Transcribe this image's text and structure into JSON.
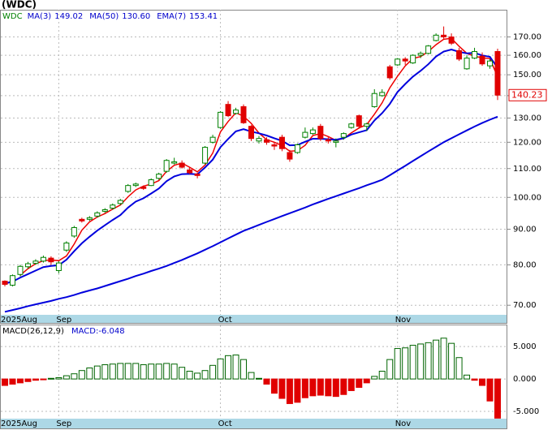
{
  "chart_data": {
    "type": "candlestick",
    "title": "(WDC)",
    "symbol": "WDC",
    "categories": [
      "2025Aug",
      null,
      null,
      null,
      null,
      null,
      null,
      "Sep",
      null,
      null,
      null,
      null,
      null,
      null,
      null,
      null,
      null,
      null,
      null,
      null,
      null,
      null,
      null,
      null,
      null,
      null,
      null,
      null,
      "Oct",
      null,
      null,
      null,
      null,
      null,
      null,
      null,
      null,
      null,
      null,
      null,
      null,
      null,
      null,
      null,
      null,
      null,
      null,
      null,
      null,
      null,
      null,
      "Nov",
      null,
      null,
      null,
      null,
      null,
      null,
      null,
      null,
      null,
      null,
      null,
      null,
      null
    ],
    "open": [
      75.8,
      74.8,
      77.5,
      79.5,
      80.4,
      81,
      81.8,
      78.5,
      84,
      88,
      93,
      93,
      94,
      95.5,
      96.5,
      98,
      102,
      104,
      103.5,
      104,
      106.5,
      109,
      112,
      112,
      109.5,
      108,
      112,
      120,
      126,
      136,
      132,
      135,
      126.5,
      120.5,
      121,
      119,
      122,
      116,
      116,
      122,
      123.5,
      126.5,
      121,
      120,
      122,
      126,
      131,
      126.5,
      135,
      140,
      154,
      155,
      158,
      156,
      160,
      161,
      168,
      171,
      170,
      162.5,
      153,
      158.5,
      159.5,
      154.5,
      162
    ],
    "high": [
      76,
      77.5,
      80,
      80.8,
      81.5,
      82.5,
      82.3,
      81,
      86.5,
      91,
      93.5,
      94,
      95.5,
      96.5,
      98,
      99.5,
      104.5,
      105,
      104,
      106.5,
      108.5,
      113.5,
      114,
      113,
      110.5,
      108.5,
      118.5,
      123,
      133,
      137.5,
      134.5,
      136,
      127,
      122.5,
      122,
      120,
      123,
      117,
      119.5,
      126,
      126,
      127.5,
      122,
      121.5,
      124,
      128,
      131.5,
      128,
      143,
      143,
      155,
      158.5,
      159,
      160.5,
      162,
      165.5,
      172,
      176,
      172,
      164,
      160,
      164,
      161.5,
      158,
      163.5
    ],
    "low": [
      74.5,
      74.5,
      77,
      79,
      80,
      80.6,
      80,
      77.8,
      83.5,
      87.5,
      92,
      92.5,
      93.5,
      95,
      96,
      97.5,
      101.5,
      103.5,
      102.5,
      103.8,
      106,
      108.5,
      111.5,
      110,
      108,
      106.5,
      111.5,
      119.5,
      125.5,
      130.5,
      131.5,
      127.5,
      120.5,
      119.5,
      119,
      117,
      116.5,
      112.5,
      115.5,
      121.5,
      123,
      120.5,
      119.5,
      118,
      121,
      125.5,
      125.5,
      124.5,
      134.5,
      139.5,
      147.5,
      154.5,
      155,
      155.5,
      158.5,
      160.5,
      167.5,
      169,
      165.5,
      157,
      152.5,
      158,
      154.5,
      153,
      138
    ],
    "close": [
      75,
      77.2,
      79.6,
      80.3,
      81,
      82,
      80.8,
      80.5,
      86,
      90.5,
      92.5,
      93.5,
      95,
      96,
      97.5,
      99,
      104,
      104.5,
      103,
      106,
      108,
      113,
      112.5,
      110.5,
      108.5,
      107.5,
      118,
      122,
      132.5,
      131,
      133.5,
      128,
      121.5,
      121.5,
      120,
      118.5,
      117.5,
      113.5,
      119,
      124,
      125,
      121.5,
      120.5,
      120.5,
      123.5,
      127.5,
      126.5,
      127.5,
      141,
      141.5,
      148.5,
      158,
      157,
      160,
      161,
      165,
      171,
      170,
      166.5,
      158,
      158.5,
      162,
      155.5,
      157,
      140.23
    ],
    "up_color": "#008000",
    "down_color": "#e00000",
    "last_price": 140.23,
    "series": [
      {
        "name": "MA(3)",
        "legend_value": "149.02",
        "color": "#ee0000",
        "values": [
          null,
          null,
          77.3,
          79,
          80.3,
          81.1,
          81.3,
          81.1,
          82.4,
          85.7,
          89.7,
          92.2,
          93.7,
          94.8,
          96.2,
          97.5,
          100.2,
          102.5,
          103.8,
          104.5,
          105.7,
          109,
          111.2,
          112,
          110.5,
          108.8,
          111.3,
          115.8,
          124.2,
          128.5,
          132.3,
          130.8,
          127.7,
          123.7,
          121,
          120,
          118.7,
          116.5,
          116.7,
          118.8,
          122.7,
          123.5,
          122.3,
          120.8,
          121.5,
          123.8,
          125.8,
          127.2,
          131.7,
          136.7,
          143.7,
          149.3,
          154.5,
          158.3,
          159.3,
          162,
          165.7,
          168.7,
          169.2,
          164.8,
          161,
          159.5,
          158.7,
          158.2,
          149.02
        ]
      },
      {
        "name": "MA(50)",
        "legend_value": "130.60",
        "color": "#0000dd",
        "values": [
          68.5,
          68.9,
          69.3,
          69.8,
          70.2,
          70.6,
          71,
          71.5,
          71.9,
          72.4,
          73,
          73.5,
          74,
          74.6,
          75.2,
          75.8,
          76.4,
          77.1,
          77.7,
          78.4,
          79,
          79.7,
          80.5,
          81.3,
          82.2,
          83.1,
          84.1,
          85.1,
          86.2,
          87.3,
          88.4,
          89.5,
          90.4,
          91.3,
          92.2,
          93.1,
          94,
          94.9,
          95.8,
          96.7,
          97.7,
          98.6,
          99.5,
          100.4,
          101.3,
          102.2,
          103.1,
          104.1,
          105,
          106,
          107.6,
          109.3,
          111,
          112.8,
          114.6,
          116.4,
          118.2,
          120,
          121.6,
          123.2,
          124.8,
          126.4,
          127.9,
          129.3,
          130.6
        ]
      },
      {
        "name": "EMA(7)",
        "legend_value": "153.41",
        "color": "#0000dd",
        "values": [
          75.2,
          75.7,
          76.7,
          77.6,
          78.5,
          79.4,
          79.7,
          79.9,
          81.4,
          83.7,
          85.9,
          87.8,
          89.6,
          91.2,
          92.8,
          94.3,
          96.7,
          98.6,
          99.7,
          101.3,
          103,
          105.5,
          107.2,
          108,
          108.1,
          107.9,
          110.4,
          113.3,
          118.1,
          121.3,
          124.4,
          125.3,
          124.3,
          123.6,
          122.7,
          121.6,
          120.6,
          118.8,
          118.9,
          120.2,
          121.4,
          121.4,
          121.2,
          121,
          121.6,
          123.1,
          124,
          124.9,
          129,
          132.1,
          136.2,
          141.7,
          145.5,
          149.1,
          152,
          155.3,
          159.3,
          162,
          163.1,
          161.8,
          161,
          161.3,
          159.9,
          159.2,
          153.41
        ]
      }
    ],
    "log_scale": true,
    "ylim": [
      68,
      186
    ],
    "yticks": [
      {
        "value": 70,
        "label": "70.00"
      },
      {
        "value": 80,
        "label": "80.00"
      },
      {
        "value": 90,
        "label": "90.00"
      },
      {
        "value": 100,
        "label": "100.00"
      },
      {
        "value": 110,
        "label": "110.00"
      },
      {
        "value": 120,
        "label": "120.00"
      },
      {
        "value": 130,
        "label": "130.00"
      },
      {
        "value": 140,
        "label": "140.00"
      },
      {
        "value": 150,
        "label": "150.00"
      },
      {
        "value": 160,
        "label": "160.00"
      },
      {
        "value": 170,
        "label": "170.00"
      }
    ],
    "grid": true,
    "macd": {
      "type": "bar",
      "title": "MACD(26,12,9)",
      "value_text": "MACD:-6.048",
      "pos_color": "#006400",
      "neg_color": "#e00000",
      "values": [
        -1.0,
        -0.8,
        -0.6,
        -0.4,
        -0.2,
        -0.1,
        0.1,
        0.2,
        0.5,
        0.8,
        1.3,
        1.7,
        2.0,
        2.2,
        2.3,
        2.4,
        2.4,
        2.4,
        2.2,
        2.3,
        2.3,
        2.4,
        2.3,
        1.8,
        1.2,
        0.9,
        1.3,
        2.1,
        3.1,
        3.6,
        3.7,
        3.0,
        1.0,
        0.1,
        -0.8,
        -2.2,
        -3.0,
        -3.8,
        -3.6,
        -2.9,
        -2.6,
        -2.5,
        -2.6,
        -2.7,
        -2.4,
        -1.8,
        -1.3,
        -0.6,
        0.4,
        1.2,
        3.0,
        4.7,
        4.8,
        5.2,
        5.4,
        5.6,
        6.0,
        6.3,
        5.5,
        3.3,
        0.6,
        -0.2,
        -1.0,
        -3.4,
        -6.048
      ],
      "ylim": [
        -6,
        8.4
      ],
      "yticks": [
        {
          "value": -5,
          "label": "-5.000"
        },
        {
          "value": 0,
          "label": "0.000"
        },
        {
          "value": 5,
          "label": "5.000"
        }
      ]
    }
  }
}
